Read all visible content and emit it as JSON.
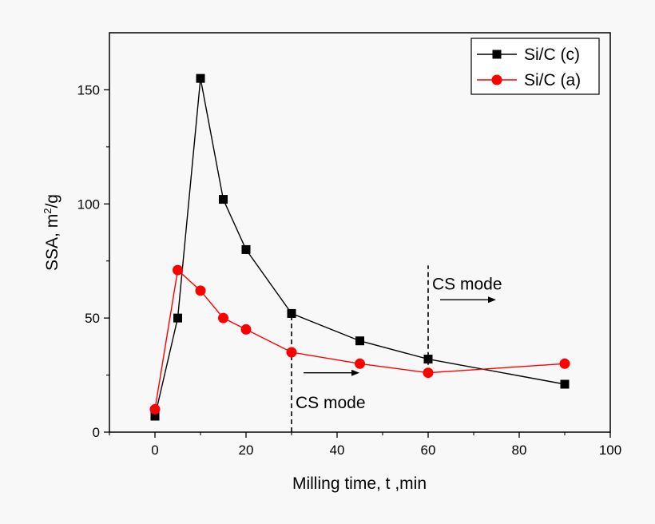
{
  "chart_data": {
    "type": "line",
    "xlabel": "Milling time, t ,min",
    "ylabel_main": "SSA, m",
    "ylabel_sup": "2",
    "ylabel_tail": "/g",
    "xlim": [
      -10,
      100
    ],
    "ylim": [
      0,
      175
    ],
    "x_ticks": [
      0,
      20,
      40,
      60,
      80,
      100
    ],
    "y_ticks": [
      0,
      50,
      100,
      150
    ],
    "x_tick_labels": [
      "0",
      "20",
      "40",
      "60",
      "80",
      "100"
    ],
    "y_tick_labels": [
      "0",
      "50",
      "100",
      "150"
    ],
    "grid": false,
    "legend_position": "top-right",
    "series": [
      {
        "name": "Si/C (c)",
        "color": "#000000",
        "marker": "square",
        "x": [
          0,
          5,
          10,
          15,
          20,
          30,
          45,
          60,
          90
        ],
        "y": [
          7,
          50,
          155,
          102,
          80,
          52,
          40,
          32,
          21
        ]
      },
      {
        "name": "Si/C (a)",
        "color": "#ff0000",
        "marker": "circle",
        "x": [
          0,
          5,
          10,
          15,
          20,
          30,
          45,
          60,
          90
        ],
        "y": [
          10,
          71,
          62,
          50,
          45,
          35,
          30,
          26,
          30
        ]
      }
    ],
    "annotations": [
      {
        "text": "CS mode",
        "x": 30,
        "label_y": 13,
        "line_y": [
          0,
          52
        ],
        "arrow_y": 26
      },
      {
        "text": "CS mode",
        "x": 60,
        "label_y": 65,
        "line_y": [
          26,
          73
        ],
        "arrow_y": 58
      }
    ]
  }
}
